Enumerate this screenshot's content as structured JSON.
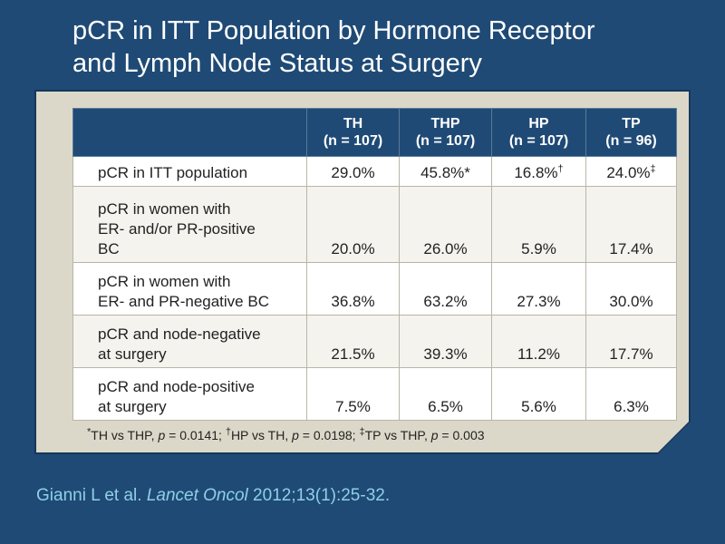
{
  "title": {
    "line1": "pCR in ITT Population by Hormone Receptor",
    "line2": "and Lymph Node Status at Surgery"
  },
  "table": {
    "headers": [
      {
        "name": "TH",
        "n": "(n = 107)"
      },
      {
        "name": "THP",
        "n": "(n = 107)"
      },
      {
        "name": "HP",
        "n": "(n = 107)"
      },
      {
        "name": "TP",
        "n": "(n = 96)"
      }
    ],
    "rows": [
      {
        "label_lines": [
          "pCR in ITT population"
        ],
        "values": [
          "29.0%",
          "45.8%",
          "16.8%",
          "24.0%"
        ],
        "marks": [
          "",
          "*",
          "†",
          "‡"
        ]
      },
      {
        "label_lines": [
          "pCR in women with",
          "ER- and/or PR-positive",
          "BC"
        ],
        "values": [
          "20.0%",
          "26.0%",
          "5.9%",
          "17.4%"
        ]
      },
      {
        "label_lines": [
          "pCR in women with",
          "ER- and PR-negative BC"
        ],
        "values": [
          "36.8%",
          "63.2%",
          "27.3%",
          "30.0%"
        ]
      },
      {
        "label_lines": [
          "pCR and node-negative",
          "at surgery"
        ],
        "values": [
          "21.5%",
          "39.3%",
          "11.2%",
          "17.7%"
        ]
      },
      {
        "label_lines": [
          "pCR and node-positive",
          "at surgery"
        ],
        "values": [
          "7.5%",
          "6.5%",
          "5.6%",
          "6.3%"
        ]
      }
    ]
  },
  "footnote": {
    "m1": "*",
    "t1": "TH vs THP, ",
    "p1": "p",
    "v1": " = 0.0141; ",
    "m2": "†",
    "t2": "HP vs TH, ",
    "p2": "p",
    "v2": " = 0.0198; ",
    "m3": "‡",
    "t3": "TP vs THP, ",
    "p3": "p",
    "v3": " = 0.003"
  },
  "citation": {
    "authors": "Gianni L et al. ",
    "journal": "Lancet Oncol",
    "details": " 2012;13(1):25-32."
  },
  "colors": {
    "background": "#1f4a75",
    "panel": "#dcd8c9",
    "citation": "#8fd0e6"
  }
}
